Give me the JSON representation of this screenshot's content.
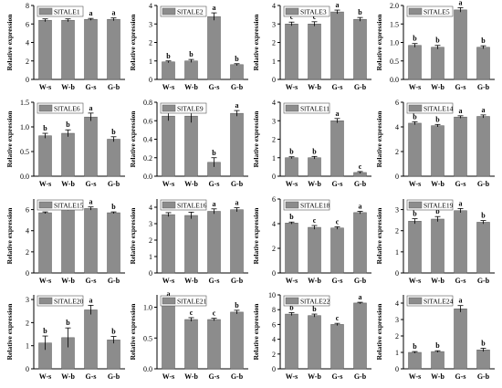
{
  "ylabel": "Relative expression",
  "categories": [
    "W-s",
    "W-b",
    "G-s",
    "G-b"
  ],
  "colors": {
    "bar": "#8c8c8c",
    "axis": "#000000"
  },
  "chart_data": [
    {
      "type": "bar",
      "legend": "SlTALE1",
      "categories": [
        "W-s",
        "W-b",
        "G-s",
        "G-b"
      ],
      "values": [
        6.4,
        6.4,
        6.5,
        6.5
      ],
      "errors": [
        0.15,
        0.15,
        0.1,
        0.15
      ],
      "letters": [
        "a",
        "a",
        "a",
        "a"
      ],
      "ylim": [
        0,
        8
      ],
      "yticks": [
        0,
        2,
        4,
        6,
        8
      ],
      "ylabel": "Relative expression"
    },
    {
      "type": "bar",
      "legend": "SlTALE2",
      "categories": [
        "W-s",
        "W-b",
        "G-s",
        "G-b"
      ],
      "values": [
        0.95,
        1.0,
        3.4,
        0.8
      ],
      "errors": [
        0.05,
        0.08,
        0.2,
        0.05
      ],
      "letters": [
        "b",
        "b",
        "a",
        "b"
      ],
      "ylim": [
        0,
        4
      ],
      "yticks": [
        0,
        1,
        2,
        3,
        4
      ],
      "ylabel": "Relative expression"
    },
    {
      "type": "bar",
      "legend": "SlTALE3",
      "categories": [
        "W-s",
        "W-b",
        "G-s",
        "G-b"
      ],
      "values": [
        3.0,
        3.0,
        3.65,
        3.25
      ],
      "errors": [
        0.1,
        0.12,
        0.1,
        0.1
      ],
      "letters": [
        "c",
        "c",
        "a",
        "b"
      ],
      "ylim": [
        0,
        4
      ],
      "yticks": [
        0,
        1,
        2,
        3,
        4
      ],
      "ylabel": "Relative expression"
    },
    {
      "type": "bar",
      "legend": "SlTALE5",
      "categories": [
        "W-s",
        "W-b",
        "G-s",
        "G-b"
      ],
      "values": [
        0.92,
        0.87,
        1.88,
        0.87
      ],
      "errors": [
        0.05,
        0.05,
        0.06,
        0.04
      ],
      "letters": [
        "b",
        "b",
        "a",
        "b"
      ],
      "ylim": [
        0,
        2.0
      ],
      "yticks": [
        0,
        0.5,
        1.0,
        1.5,
        2.0
      ],
      "ylabel": "Relative expression"
    },
    {
      "type": "bar",
      "legend": "SlTALE6",
      "categories": [
        "W-s",
        "W-b",
        "G-s",
        "G-b"
      ],
      "values": [
        0.82,
        0.87,
        1.2,
        0.75
      ],
      "errors": [
        0.05,
        0.07,
        0.08,
        0.05
      ],
      "letters": [
        "b",
        "b",
        "a",
        "b"
      ],
      "ylim": [
        0,
        1.5
      ],
      "yticks": [
        0,
        0.5,
        1.0,
        1.5
      ],
      "ylabel": "Relative expression"
    },
    {
      "type": "bar",
      "legend": "SlTALE9",
      "categories": [
        "W-s",
        "W-b",
        "G-s",
        "G-b"
      ],
      "values": [
        0.65,
        0.65,
        0.15,
        0.68
      ],
      "errors": [
        0.05,
        0.07,
        0.05,
        0.03
      ],
      "letters": [
        "a",
        "a",
        "b",
        "a"
      ],
      "ylim": [
        0,
        0.8
      ],
      "yticks": [
        0,
        0.2,
        0.4,
        0.6,
        0.8
      ],
      "ylabel": "Relative expression"
    },
    {
      "type": "bar",
      "legend": "SlTALE11",
      "categories": [
        "W-s",
        "W-b",
        "G-s",
        "G-b"
      ],
      "values": [
        1.0,
        1.0,
        3.0,
        0.2
      ],
      "errors": [
        0.05,
        0.07,
        0.12,
        0.05
      ],
      "letters": [
        "b",
        "b",
        "a",
        "c"
      ],
      "ylim": [
        0,
        4
      ],
      "yticks": [
        0,
        1,
        2,
        3,
        4
      ],
      "ylabel": "Relative expression"
    },
    {
      "type": "bar",
      "legend": "SlTALE14",
      "categories": [
        "W-s",
        "W-b",
        "G-s",
        "G-b"
      ],
      "values": [
        4.3,
        4.1,
        4.8,
        4.85
      ],
      "errors": [
        0.12,
        0.1,
        0.1,
        0.12
      ],
      "letters": [
        "b",
        "b",
        "a",
        "a"
      ],
      "ylim": [
        0,
        6
      ],
      "yticks": [
        0,
        2,
        4,
        6
      ],
      "ylabel": "Relative expression"
    },
    {
      "type": "bar",
      "legend": "SlTALE15",
      "categories": [
        "W-s",
        "W-b",
        "G-s",
        "G-b"
      ],
      "values": [
        5.7,
        6.0,
        6.1,
        5.7
      ],
      "errors": [
        0.08,
        0.08,
        0.15,
        0.08
      ],
      "letters": [
        "b",
        "a",
        "a",
        "b"
      ],
      "ylim": [
        0,
        7
      ],
      "yticks": [
        0,
        2,
        4,
        6
      ],
      "ylabel": "Relative expression"
    },
    {
      "type": "bar",
      "legend": "SlTALE16",
      "categories": [
        "W-s",
        "W-b",
        "G-s",
        "G-b"
      ],
      "values": [
        3.55,
        3.5,
        3.75,
        3.85
      ],
      "errors": [
        0.12,
        0.2,
        0.15,
        0.12
      ],
      "letters": [
        "a",
        "a",
        "a",
        "a"
      ],
      "ylim": [
        0,
        4.5
      ],
      "yticks": [
        0,
        1,
        2,
        3,
        4
      ],
      "ylabel": "Relative expression"
    },
    {
      "type": "bar",
      "legend": "SlTALE18",
      "categories": [
        "W-s",
        "W-b",
        "G-s",
        "G-b"
      ],
      "values": [
        4.05,
        3.7,
        3.65,
        4.9
      ],
      "errors": [
        0.08,
        0.15,
        0.1,
        0.1
      ],
      "letters": [
        "b",
        "c",
        "c",
        "a"
      ],
      "ylim": [
        0,
        6
      ],
      "yticks": [
        0,
        2,
        4,
        6
      ],
      "ylabel": "Relative expression"
    },
    {
      "type": "bar",
      "legend": "SlTALE19",
      "categories": [
        "W-s",
        "W-b",
        "G-s",
        "G-b"
      ],
      "values": [
        2.45,
        2.55,
        2.95,
        2.4
      ],
      "errors": [
        0.12,
        0.12,
        0.1,
        0.08
      ],
      "letters": [
        "b",
        "b",
        "a",
        "b"
      ],
      "ylim": [
        0,
        3.5
      ],
      "yticks": [
        0,
        1,
        2,
        3
      ],
      "ylabel": "Relative expression"
    },
    {
      "type": "bar",
      "legend": "SlTALE20",
      "categories": [
        "W-s",
        "W-b",
        "G-s",
        "G-b"
      ],
      "values": [
        1.12,
        1.35,
        2.55,
        1.25
      ],
      "errors": [
        0.3,
        0.42,
        0.2,
        0.15
      ],
      "letters": [
        "b",
        "b",
        "a",
        "b"
      ],
      "ylim": [
        0,
        3.2
      ],
      "yticks": [
        0,
        1,
        2,
        3
      ],
      "ylabel": "Relative expression"
    },
    {
      "type": "bar",
      "legend": "SlTALE21",
      "categories": [
        "W-s",
        "W-b",
        "G-s",
        "G-b"
      ],
      "values": [
        1.1,
        0.8,
        0.8,
        0.92
      ],
      "errors": [
        0.03,
        0.03,
        0.02,
        0.03
      ],
      "letters": [
        "a",
        "c",
        "c",
        "b"
      ],
      "ylim": [
        0,
        1.2
      ],
      "yticks": [
        0,
        0.5,
        1.0
      ],
      "ylabel": "Relative expression"
    },
    {
      "type": "bar",
      "legend": "SlTALE22",
      "categories": [
        "W-s",
        "W-b",
        "G-s",
        "G-b"
      ],
      "values": [
        7.4,
        7.2,
        6.0,
        8.9
      ],
      "errors": [
        0.2,
        0.2,
        0.15,
        0.1
      ],
      "letters": [
        "b",
        "b",
        "c",
        "a"
      ],
      "ylim": [
        0,
        10
      ],
      "yticks": [
        0,
        2,
        4,
        6,
        8,
        10
      ],
      "ylabel": "Relative expression"
    },
    {
      "type": "bar",
      "legend": "SlTALE24",
      "categories": [
        "W-s",
        "W-b",
        "G-s",
        "G-b"
      ],
      "values": [
        1.0,
        1.05,
        3.65,
        1.15
      ],
      "errors": [
        0.05,
        0.05,
        0.2,
        0.1
      ],
      "letters": [
        "b",
        "b",
        "a",
        "b"
      ],
      "ylim": [
        0,
        4.5
      ],
      "yticks": [
        0,
        1,
        2,
        3,
        4
      ],
      "ylabel": "Relative expression"
    }
  ]
}
